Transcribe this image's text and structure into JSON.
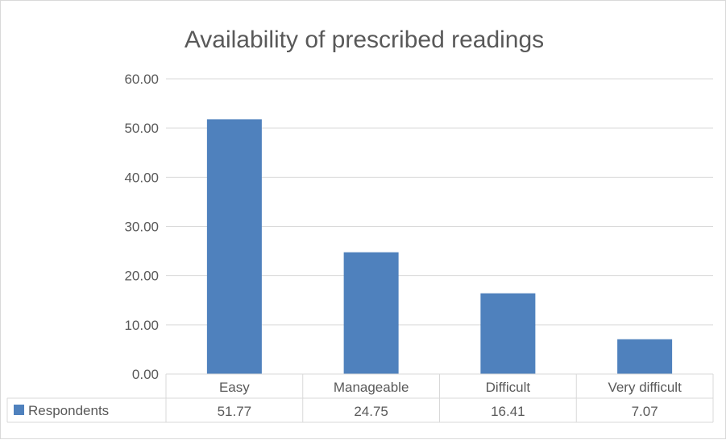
{
  "chart_data": {
    "type": "bar",
    "title": "Availability of prescribed readings",
    "categories": [
      "Easy",
      "Manageable",
      "Difficult",
      "Very difficult"
    ],
    "series": [
      {
        "name": "Respondents",
        "values": [
          51.77,
          24.75,
          16.41,
          7.07
        ],
        "color": "#4f81bd"
      }
    ],
    "value_labels": [
      "51.77",
      "24.75",
      "16.41",
      "7.07"
    ],
    "ylim": [
      0,
      60
    ],
    "y_ticks": [
      "0.00",
      "10.00",
      "20.00",
      "30.00",
      "40.00",
      "50.00",
      "60.00"
    ],
    "grid": true,
    "legend": "data-table-left",
    "data_table": true
  }
}
